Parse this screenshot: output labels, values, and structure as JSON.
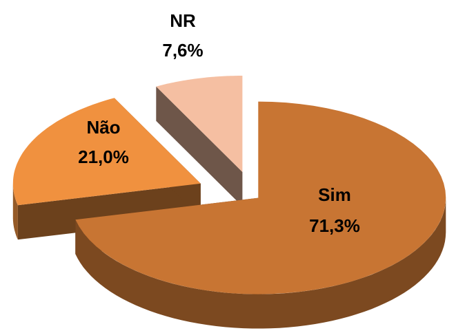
{
  "chart_data": {
    "type": "pie",
    "categories": [
      "Sim",
      "Não",
      "NR"
    ],
    "values": [
      71.3,
      21.0,
      7.6
    ],
    "value_labels": [
      "71,3%",
      "21,0%",
      "7,6%"
    ],
    "colors": [
      "#c87533",
      "#f0913f",
      "#f5bfa2"
    ]
  }
}
